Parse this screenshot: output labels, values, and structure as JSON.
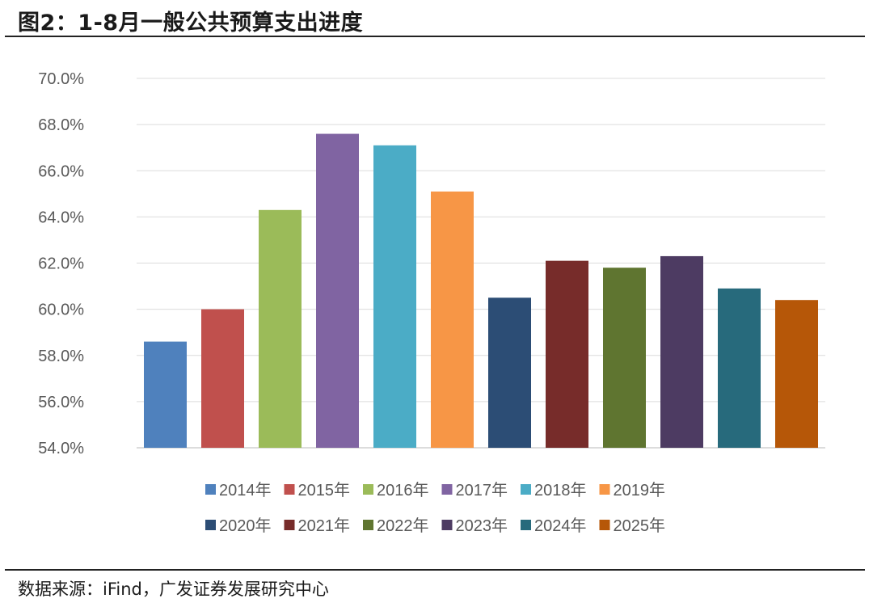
{
  "figure": {
    "title": "图2：1-8月一般公共预算支出进度",
    "source": "数据来源：iFind，广发证券发展研究中心"
  },
  "chart_data": {
    "type": "bar",
    "title": "",
    "xlabel": "",
    "ylabel": "",
    "ylim": [
      54.0,
      70.0
    ],
    "yticks": [
      "54.0%",
      "56.0%",
      "58.0%",
      "60.0%",
      "62.0%",
      "64.0%",
      "66.0%",
      "68.0%",
      "70.0%"
    ],
    "grid": true,
    "legend_position": "bottom",
    "series": [
      {
        "name": "2014年",
        "value": 58.6,
        "color": "#4f81bd"
      },
      {
        "name": "2015年",
        "value": 60.0,
        "color": "#c0504d"
      },
      {
        "name": "2016年",
        "value": 64.3,
        "color": "#9bbb59"
      },
      {
        "name": "2017年",
        "value": 67.6,
        "color": "#8064a2"
      },
      {
        "name": "2018年",
        "value": 67.1,
        "color": "#4bacc6"
      },
      {
        "name": "2019年",
        "value": 65.1,
        "color": "#f79646"
      },
      {
        "name": "2020年",
        "value": 60.5,
        "color": "#2c4d75"
      },
      {
        "name": "2021年",
        "value": 62.1,
        "color": "#772c2a"
      },
      {
        "name": "2022年",
        "value": 61.8,
        "color": "#5f7530"
      },
      {
        "name": "2023年",
        "value": 62.3,
        "color": "#4d3b62"
      },
      {
        "name": "2024年",
        "value": 60.9,
        "color": "#276a7c"
      },
      {
        "name": "2025年",
        "value": 60.4,
        "color": "#b65708"
      }
    ]
  }
}
